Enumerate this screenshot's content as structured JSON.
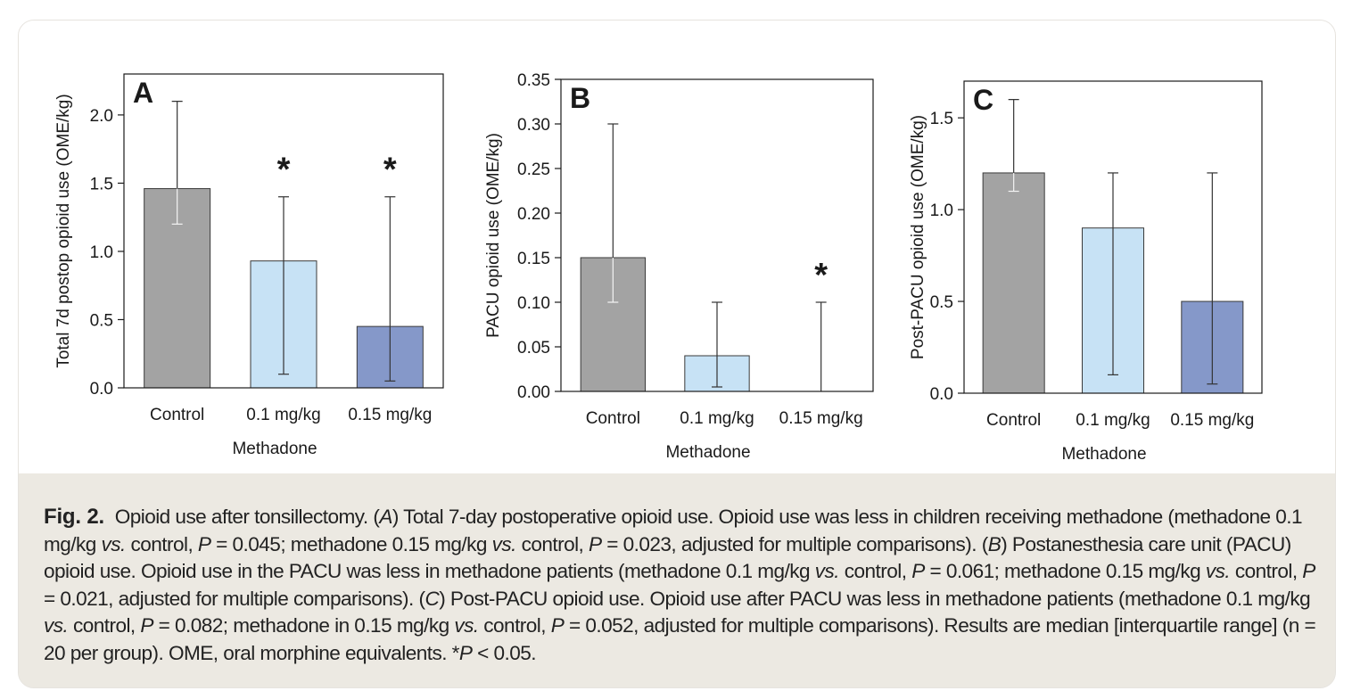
{
  "figure": {
    "caption_label": "Fig. 2.",
    "caption_text": "Opioid use after tonsillectomy. (A) Total 7-day postoperative opioid use. Opioid use was less in children receiving methadone (methadone 0.1 mg/kg vs. control, P = 0.045; methadone 0.15 mg/kg vs. control, P = 0.023, adjusted for multiple comparisons). (B) Postanesthesia care unit (PACU) opioid use. Opioid use in the PACU was less in methadone patients (methadone 0.1 mg/kg vs. control, P = 0.061; methadone 0.15 mg/kg vs. control, P = 0.021, adjusted for multiple comparisons). (C) Post-PACU opioid use. Opioid use after PACU was less in methadone patients (methadone 0.1 mg/kg vs. control, P = 0.082; methadone in 0.15 mg/kg vs. control, P = 0.052, adjusted for multiple comparisons). Results are median [interquartile range] (n = 20 per group). OME, oral morphine equivalents. *P < 0.05."
  },
  "colors": {
    "control": "#a3a3a3",
    "dose_low": "#c7e2f5",
    "dose_high": "#8598c9",
    "axis": "#1a1a1a",
    "error_bar": "#333333"
  },
  "chart_data": [
    {
      "type": "bar",
      "panel_label": "A",
      "categories": [
        "Control",
        "0.1 mg/kg",
        "0.15 mg/kg"
      ],
      "values": [
        1.46,
        0.93,
        0.45
      ],
      "error_low": [
        1.2,
        0.1,
        0.05
      ],
      "error_high": [
        2.1,
        1.4,
        1.4
      ],
      "significant": [
        false,
        true,
        true
      ],
      "xlabel": "Methadone",
      "ylabel": "Total 7d postop opioid use (OME/kg)",
      "ylim": [
        0,
        2.3
      ],
      "yticks": [
        0,
        0.5,
        1.0,
        1.5,
        2.0
      ],
      "ytick_labels": [
        "0.0",
        "0.5",
        "1.0",
        "1.5",
        "2.0"
      ]
    },
    {
      "type": "bar",
      "panel_label": "B",
      "categories": [
        "Control",
        "0.1 mg/kg",
        "0.15 mg/kg"
      ],
      "values": [
        0.15,
        0.04,
        0.0
      ],
      "error_low": [
        0.1,
        0.005,
        0.0
      ],
      "error_high": [
        0.3,
        0.1,
        0.1
      ],
      "significant": [
        false,
        false,
        true
      ],
      "xlabel": "Methadone",
      "ylabel": "PACU opioid use (OME/kg)",
      "ylim": [
        0,
        0.35
      ],
      "yticks": [
        0,
        0.05,
        0.1,
        0.15,
        0.2,
        0.25,
        0.3,
        0.35
      ],
      "ytick_labels": [
        "0.00",
        "0.05",
        "0.10",
        "0.15",
        "0.20",
        "0.25",
        "0.30",
        "0.35"
      ]
    },
    {
      "type": "bar",
      "panel_label": "C",
      "categories": [
        "Control",
        "0.1 mg/kg",
        "0.15 mg/kg"
      ],
      "values": [
        1.2,
        0.9,
        0.5
      ],
      "error_low": [
        1.1,
        0.1,
        0.05
      ],
      "error_high": [
        1.6,
        1.2,
        1.2
      ],
      "significant": [
        false,
        false,
        false
      ],
      "xlabel": "Methadone",
      "ylabel": "Post-PACU opioid use (OME/kg)",
      "ylim": [
        0,
        1.7
      ],
      "yticks": [
        0,
        0.5,
        1.0,
        1.5
      ],
      "ytick_labels": [
        "0.0",
        "0.5",
        "1.0",
        "1.5"
      ]
    }
  ]
}
